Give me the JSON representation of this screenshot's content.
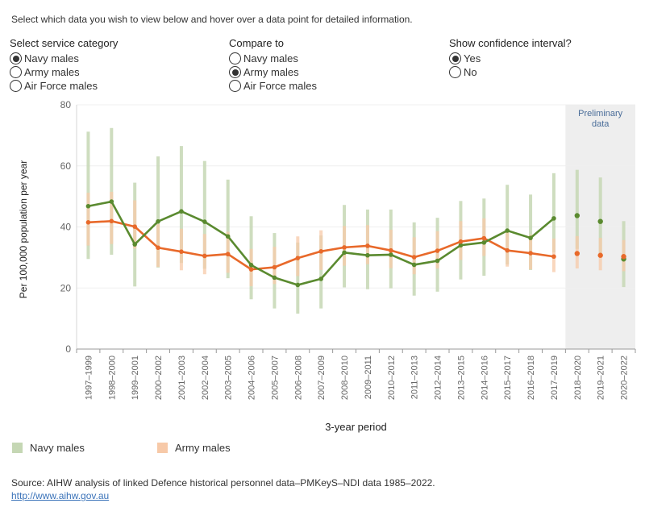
{
  "instruction": "Select which data you wish to view below and hover over a data point for detailed information.",
  "controls": {
    "service": {
      "title": "Select service category",
      "options": [
        "Navy males",
        "Army males",
        "Air Force males"
      ],
      "selected": 0
    },
    "compare": {
      "title": "Compare to",
      "options": [
        "Navy males",
        "Army males",
        "Air Force males"
      ],
      "selected": 1
    },
    "ci": {
      "title": "Show confidence interval?",
      "options": [
        "Yes",
        "No"
      ],
      "selected": 0
    }
  },
  "legend": {
    "navy": "Navy males",
    "army": "Army males"
  },
  "source": {
    "text": "Source: AIHW analysis of linked Defence historical personnel data–PMKeyS–NDI data 1985–2022.",
    "link": "http://www.aihw.gov.au"
  },
  "colors": {
    "navy": "#5a8a2f",
    "navy_ci": "#c5d7b4",
    "army": "#e8692a",
    "army_ci": "#f7c9a8",
    "preliminary_band": "#eeeeee"
  },
  "chart_data": {
    "type": "line",
    "ylabel": "Per 100,000 population per year",
    "xlabel": "3-year period",
    "ylim": [
      0,
      80
    ],
    "yticks": [
      0,
      20,
      40,
      60,
      80
    ],
    "grid": true,
    "preliminary_label": "Preliminary\ndata",
    "preliminary_categories": [
      "2018–2020",
      "2019–2021",
      "2020–2022"
    ],
    "categories": [
      "1997–1999",
      "1998–2000",
      "1999–2001",
      "2000–2002",
      "2001–2003",
      "2002–2004",
      "2003–2005",
      "2004–2006",
      "2005–2007",
      "2006–2008",
      "2007–2009",
      "2008–2010",
      "2009–2011",
      "2010–2012",
      "2011–2013",
      "2012–2014",
      "2013–2015",
      "2014–2016",
      "2015–2017",
      "2016–2018",
      "2017–2019",
      "2018–2020",
      "2019–2021",
      "2020–2022"
    ],
    "series": [
      {
        "name": "Navy males",
        "values": [
          46.8,
          48.3,
          34.3,
          41.8,
          45.1,
          41.7,
          36.9,
          27.5,
          23.4,
          21.0,
          23.0,
          31.6,
          30.7,
          30.9,
          27.6,
          28.9,
          34.0,
          34.9,
          38.8,
          36.4,
          42.8,
          43.7,
          41.8,
          29.5
        ],
        "ci_low": [
          29.5,
          30.9,
          20.5,
          26.7,
          28.2,
          26.3,
          23.2,
          16.3,
          13.3,
          11.6,
          13.3,
          20.2,
          19.6,
          19.9,
          17.5,
          18.8,
          22.8,
          24.0,
          27.7,
          25.9,
          31.7,
          32.8,
          31.0,
          20.3
        ],
        "ci_high": [
          71.2,
          72.4,
          54.5,
          63.1,
          66.5,
          61.6,
          55.5,
          43.5,
          38.0,
          34.9,
          37.2,
          47.2,
          45.7,
          45.7,
          41.5,
          43.0,
          48.5,
          49.3,
          53.8,
          50.6,
          57.6,
          58.7,
          56.2,
          41.9
        ]
      },
      {
        "name": "Army males",
        "values": [
          41.5,
          41.9,
          40.1,
          33.2,
          31.9,
          30.5,
          31.1,
          26.1,
          26.8,
          29.8,
          32.0,
          33.3,
          33.8,
          32.3,
          30.1,
          32.2,
          35.2,
          36.3,
          32.3,
          31.4,
          30.3,
          31.3,
          30.7,
          30.3
        ],
        "ci_low": [
          33.9,
          34.4,
          32.9,
          26.9,
          25.8,
          24.5,
          25.0,
          20.6,
          21.3,
          23.9,
          25.9,
          27.3,
          27.8,
          26.5,
          24.5,
          26.4,
          29.2,
          30.5,
          27.0,
          26.1,
          25.2,
          26.4,
          25.8,
          25.5
        ],
        "ci_high": [
          51.2,
          51.5,
          48.7,
          40.9,
          39.4,
          37.7,
          38.4,
          32.8,
          33.5,
          36.9,
          38.9,
          40.3,
          40.6,
          39.1,
          36.6,
          38.6,
          41.9,
          42.8,
          38.4,
          37.4,
          36.2,
          37.0,
          36.4,
          35.7
        ]
      }
    ]
  }
}
